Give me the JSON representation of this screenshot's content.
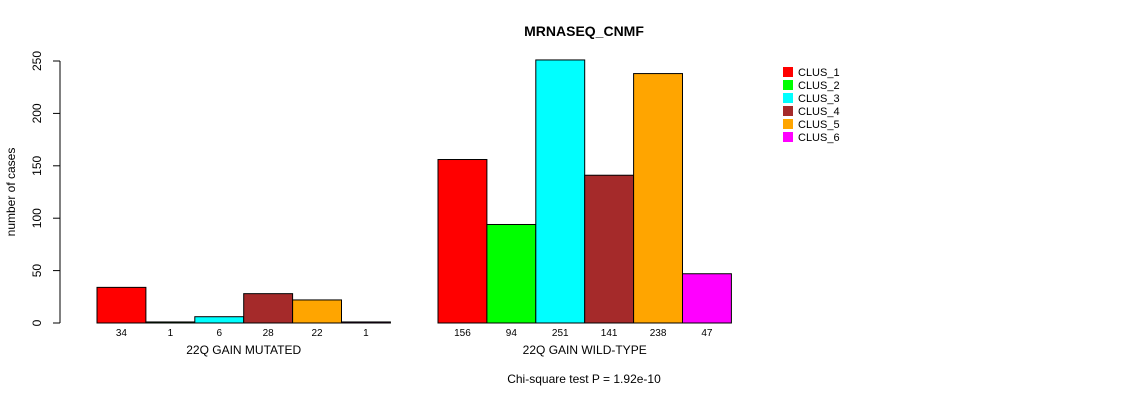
{
  "chart_data": {
    "type": "bar",
    "title": "MRNASEQ_CNMF",
    "ylabel": "number of cases",
    "ylim": [
      0,
      250
    ],
    "yticks": [
      0,
      50,
      100,
      150,
      200,
      250
    ],
    "groups": [
      {
        "name": "22Q GAIN MUTATED",
        "values": [
          34,
          1,
          6,
          28,
          22,
          1
        ]
      },
      {
        "name": "22Q GAIN WILD-TYPE",
        "values": [
          156,
          94,
          251,
          141,
          238,
          47
        ]
      }
    ],
    "series": [
      {
        "name": "CLUS_1",
        "color": "#ff0000"
      },
      {
        "name": "CLUS_2",
        "color": "#00ff00"
      },
      {
        "name": "CLUS_3",
        "color": "#00ffff"
      },
      {
        "name": "CLUS_4",
        "color": "#a52a2a"
      },
      {
        "name": "CLUS_5",
        "color": "#ffa500"
      },
      {
        "name": "CLUS_6",
        "color": "#ff00ff"
      }
    ],
    "legend_position": "top-right",
    "footnote": "Chi-square test P = 1.92e-10"
  }
}
